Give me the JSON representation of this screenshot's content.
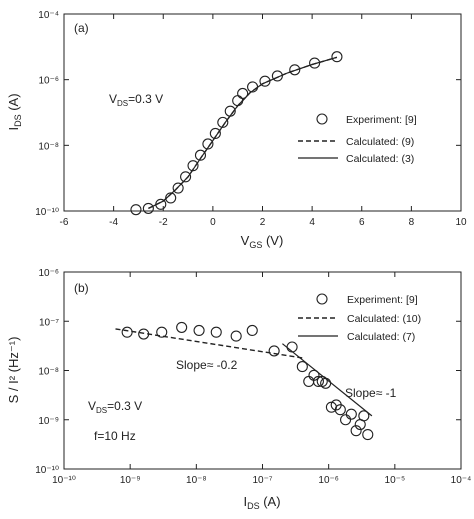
{
  "chart_data": [
    {
      "panel": "(a)",
      "type": "scatter",
      "xlabel_main": "V",
      "xlabel_sub": "GS",
      "xlabel_unit": " (V)",
      "ylabel_main": "I",
      "ylabel_sub": "DS",
      "ylabel_unit": " (A)",
      "xlim": [
        -6,
        10
      ],
      "x_ticks": [
        -6,
        -4,
        -2,
        0,
        2,
        4,
        6,
        8,
        10
      ],
      "y_log": true,
      "ylim_exp": [
        -10,
        -4
      ],
      "y_tick_exps": [
        -10,
        -8,
        -6,
        -4
      ],
      "annotation_main": "V",
      "annotation_sub": "DS",
      "annotation_value": "=0.3 V",
      "legend_position": "right",
      "legend": [
        "Experiment: [9]",
        "Calculated: (9)",
        "Calculated: (3)"
      ],
      "series": [
        {
          "name": "Experiment: [9]",
          "style": "circle",
          "x": [
            -3.1,
            -2.6,
            -2.1,
            -1.7,
            -1.4,
            -1.1,
            -0.8,
            -0.5,
            -0.2,
            0.1,
            0.4,
            0.7,
            1.0,
            1.2,
            1.6,
            2.1,
            2.6,
            3.3,
            4.1,
            5.0
          ],
          "y": [
            1.1e-10,
            1.2e-10,
            1.6e-10,
            2.5e-10,
            5e-10,
            1.1e-09,
            2.4e-09,
            5e-09,
            1.1e-08,
            2.3e-08,
            5e-08,
            1.1e-07,
            2.3e-07,
            3.8e-07,
            6e-07,
            9e-07,
            1.3e-06,
            2e-06,
            3.2e-06,
            5e-06
          ]
        },
        {
          "name": "Calculated: (9)",
          "style": "dashed",
          "x": [
            -2.6,
            -2,
            -1.5,
            -1,
            -0.5,
            0,
            0.5,
            1,
            1.5,
            2,
            3,
            4,
            5
          ],
          "y": [
            1.2e-10,
            2e-10,
            4.5e-10,
            1.1e-09,
            4e-09,
            1.4e-08,
            5e-08,
            1.6e-07,
            4e-07,
            7.5e-07,
            1.6e-06,
            2.9e-06,
            4.8e-06
          ]
        },
        {
          "name": "Calculated: (3)",
          "style": "solid",
          "x": [
            -2.6,
            -2,
            -1.5,
            -1,
            -0.5,
            0,
            0.5,
            1,
            1.5,
            2,
            3,
            4,
            5
          ],
          "y": [
            1.2e-10,
            2e-10,
            4.5e-10,
            1.1e-09,
            4e-09,
            1.4e-08,
            5e-08,
            1.6e-07,
            4e-07,
            7.5e-07,
            1.6e-06,
            2.9e-06,
            4.8e-06
          ]
        }
      ]
    },
    {
      "panel": "(b)",
      "type": "scatter",
      "xlabel_main": "I",
      "xlabel_sub": "DS",
      "xlabel_unit": " (A)",
      "ylabel_text": "S / I² (Hz⁻¹)",
      "x_log": true,
      "xlim_exp": [
        -10,
        -4
      ],
      "x_tick_exps": [
        -10,
        -9,
        -8,
        -7,
        -6,
        -5,
        -4
      ],
      "y_log": true,
      "ylim_exp": [
        -10,
        -6
      ],
      "y_tick_exps": [
        -10,
        -9,
        -8,
        -7,
        -6
      ],
      "annotation_vds_main": "V",
      "annotation_vds_sub": "DS",
      "annotation_vds_value": "=0.3 V",
      "annotation_freq": "f=10 Hz",
      "slope_label_left": "Slope≈ -0.2",
      "slope_label_right": "Slope≈ -1",
      "legend_position": "top-right",
      "legend": [
        "Experiment: [9]",
        "Calculated: (10)",
        "Calculated: (7)"
      ],
      "series": [
        {
          "name": "Experiment: [9]",
          "style": "circle",
          "x": [
            9e-10,
            1.6e-09,
            3e-09,
            6e-09,
            1.1e-08,
            2e-08,
            4e-08,
            7e-08,
            1.5e-07,
            2.8e-07,
            4e-07,
            5e-07,
            6e-07,
            7e-07,
            8e-07,
            9e-07,
            1.1e-06,
            1.3e-06,
            1.5e-06,
            1.8e-06,
            2.2e-06,
            2.6e-06,
            3e-06,
            3.4e-06,
            3.9e-06
          ],
          "y": [
            6e-08,
            5.5e-08,
            6e-08,
            7.5e-08,
            6.5e-08,
            6e-08,
            5e-08,
            6.5e-08,
            2.5e-08,
            3e-08,
            1.2e-08,
            6e-09,
            8e-09,
            6e-09,
            6e-09,
            5.5e-09,
            1.8e-09,
            2e-09,
            1.6e-09,
            1e-09,
            1.3e-09,
            6e-10,
            8e-10,
            1.2e-09,
            5e-10
          ]
        },
        {
          "name": "Calculated: (10)",
          "style": "dashed",
          "x": [
            6e-10,
            4e-07
          ],
          "y": [
            7e-08,
            1.8e-08
          ]
        },
        {
          "name": "Calculated: (7)",
          "style": "solid",
          "x": [
            2e-07,
            4.5e-06
          ],
          "y": [
            3.5e-08,
            1.2e-09
          ]
        }
      ]
    }
  ]
}
